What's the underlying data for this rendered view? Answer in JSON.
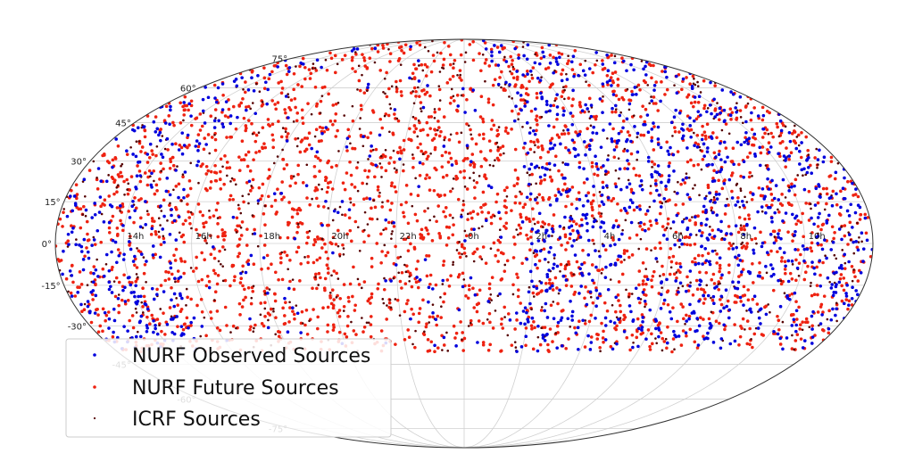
{
  "chart_data": {
    "type": "scatter",
    "projection": "mollweide",
    "title": "",
    "x_tick_labels": [
      "14h",
      "16h",
      "18h",
      "20h",
      "22h",
      "0h",
      "2h",
      "4h",
      "6h",
      "8h",
      "10h"
    ],
    "y_tick_labels": [
      "-75°",
      "-60°",
      "-45°",
      "-30°",
      "-15°",
      "0°",
      "15°",
      "30°",
      "45°",
      "60°",
      "75°"
    ],
    "y_ticks_deg": [
      -75,
      -60,
      -45,
      -30,
      -15,
      0,
      15,
      30,
      45,
      60,
      75
    ],
    "x_ticks_hours": [
      14,
      16,
      18,
      20,
      22,
      0,
      2,
      4,
      6,
      8,
      10
    ],
    "ra_center_hours": 0,
    "grid": true,
    "legend_position": "lower left",
    "series": [
      {
        "name": "NURF Observed Sources",
        "color": "#0000dd",
        "approx_count": 1300,
        "dec_range_deg": [
          -40,
          90
        ],
        "note": "concentrated near 2h–12h"
      },
      {
        "name": "NURF Future Sources",
        "color": "#ee2211",
        "approx_count": 2600,
        "dec_range_deg": [
          -40,
          90
        ]
      },
      {
        "name": "ICRF Sources",
        "color": "#550000",
        "approx_count": 700,
        "dec_range_deg": [
          -40,
          90
        ]
      }
    ]
  }
}
